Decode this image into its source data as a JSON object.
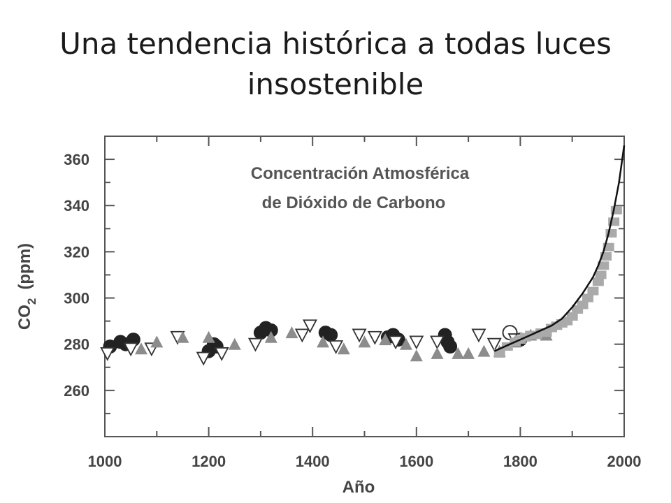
{
  "slide": {
    "title_line1": "Una tendencia histórica a todas luces",
    "title_line2": "insostenible"
  },
  "chart_data": {
    "type": "scatter",
    "title_line1": "Concentración Atmosférica",
    "title_line2": "de Dióxido de Carbono",
    "xlabel": "Año",
    "ylabel_main": "CO",
    "ylabel_sub": "2",
    "ylabel_unit": "(ppm)",
    "xlim": [
      1000,
      2000
    ],
    "ylim": [
      240,
      370
    ],
    "x_ticks": [
      1000,
      1200,
      1400,
      1600,
      1800,
      2000
    ],
    "y_ticks": [
      260,
      280,
      300,
      320,
      340,
      360
    ],
    "grid": false,
    "colors": {
      "dark": "#222222",
      "gray": "#8c8c8c",
      "light": "#aaaaaa",
      "axis": "#555555"
    },
    "series": [
      {
        "marker": "filled-circle",
        "color": "#222222",
        "x": [
          1010,
          1030,
          1040,
          1055,
          1200,
          1210,
          1215,
          1300,
          1310,
          1320,
          1425,
          1435,
          1545,
          1555,
          1565,
          1655,
          1660,
          1665,
          1800
        ],
        "y": [
          279,
          281,
          280,
          282,
          277,
          280,
          279,
          285,
          287,
          286,
          285,
          284,
          283,
          284,
          282,
          284,
          281,
          279,
          282
        ]
      },
      {
        "marker": "open-triangle-down",
        "color": "#333333",
        "x": [
          1005,
          1050,
          1090,
          1140,
          1190,
          1225,
          1290,
          1380,
          1395,
          1445,
          1490,
          1520,
          1560,
          1600,
          1640,
          1720,
          1750,
          1790
        ],
        "y": [
          276,
          278,
          278,
          283,
          274,
          276,
          280,
          284,
          288,
          279,
          284,
          283,
          281,
          281,
          281,
          284,
          280,
          282
        ]
      },
      {
        "marker": "filled-triangle-up",
        "color": "#8c8c8c",
        "x": [
          1070,
          1100,
          1150,
          1200,
          1250,
          1320,
          1360,
          1420,
          1460,
          1500,
          1540,
          1580,
          1600,
          1640,
          1680,
          1700,
          1730,
          1760,
          1790,
          1820,
          1850
        ],
        "y": [
          278,
          281,
          283,
          283,
          280,
          283,
          285,
          281,
          278,
          281,
          282,
          280,
          275,
          276,
          276,
          276,
          277,
          277,
          281,
          284,
          284
        ]
      },
      {
        "marker": "open-circle",
        "color": "#333333",
        "x": [
          1780
        ],
        "y": [
          285
        ]
      },
      {
        "marker": "gray-cloud",
        "color": "#aaaaaa",
        "x": [
          1760,
          1775,
          1790,
          1800,
          1810,
          1820,
          1830,
          1840,
          1850,
          1860,
          1870,
          1880,
          1890,
          1900,
          1910,
          1920,
          1930,
          1940,
          1950,
          1955,
          1960,
          1965,
          1970,
          1975,
          1980,
          1985
        ],
        "y": [
          276,
          279,
          281,
          282,
          283,
          284,
          284,
          285,
          285,
          287,
          288,
          289,
          290,
          292,
          295,
          297,
          300,
          303,
          307,
          310,
          314,
          318,
          322,
          328,
          333,
          338
        ]
      },
      {
        "marker": "line",
        "color": "#111111",
        "x": [
          1750,
          1780,
          1800,
          1820,
          1840,
          1860,
          1880,
          1900,
          1920,
          1940,
          1950,
          1960,
          1970,
          1980,
          1990,
          2000
        ],
        "y": [
          277,
          280,
          282,
          284,
          286,
          288,
          291,
          296,
          302,
          309,
          314,
          320,
          328,
          338,
          350,
          366
        ]
      }
    ]
  }
}
